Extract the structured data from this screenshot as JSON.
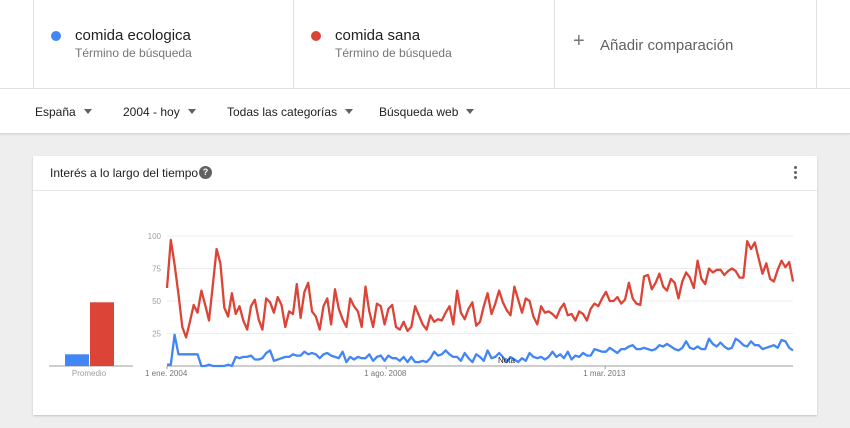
{
  "terms": [
    {
      "name": "comida ecologica",
      "subtitle": "Término de búsqueda",
      "color": "#4285f4"
    },
    {
      "name": "comida sana",
      "subtitle": "Término de búsqueda",
      "color": "#db4437"
    }
  ],
  "add_comparison": {
    "icon": "plus-icon",
    "label": "Añadir comparación"
  },
  "filters": {
    "region": "España",
    "period": "2004 - hoy",
    "category": "Todas las categorías",
    "search_type": "Búsqueda web"
  },
  "card": {
    "title": "Interés a lo largo del tiempo",
    "help_icon": "help-icon",
    "menu_icon": "more-vert-icon"
  },
  "chart_data": {
    "type": "line",
    "title": "",
    "xlabel": "",
    "ylabel": "",
    "ylim": [
      0,
      100
    ],
    "y_ticks": [
      "25",
      "50",
      "75",
      "100"
    ],
    "x_ticks": [
      "1 ene. 2004",
      "1 ago. 2008",
      "1 mar. 2013"
    ],
    "note_label": "Nota",
    "grid": true,
    "average_label": "Promedio",
    "averages": [
      {
        "name": "comida ecologica",
        "value": 9
      },
      {
        "name": "comida sana",
        "value": 49
      }
    ],
    "series": [
      {
        "name": "comida sana",
        "color": "#db4437",
        "values": [
          60,
          97,
          78,
          55,
          30,
          22,
          34,
          47,
          41,
          58,
          47,
          35,
          62,
          90,
          79,
          45,
          38,
          56,
          40,
          46,
          35,
          28,
          46,
          51,
          36,
          28,
          52,
          49,
          41,
          53,
          47,
          30,
          42,
          40,
          63,
          37,
          57,
          64,
          42,
          38,
          28,
          46,
          52,
          32,
          59,
          44,
          36,
          30,
          52,
          46,
          42,
          30,
          61,
          42,
          30,
          48,
          46,
          32,
          44,
          47,
          30,
          28,
          34,
          27,
          30,
          46,
          39,
          32,
          28,
          39,
          34,
          36,
          35,
          41,
          46,
          32,
          58,
          41,
          36,
          44,
          49,
          31,
          34,
          46,
          56,
          40,
          48,
          58,
          49,
          43,
          39,
          61,
          51,
          41,
          52,
          50,
          38,
          32,
          46,
          41,
          42,
          40,
          37,
          44,
          48,
          39,
          40,
          35,
          42,
          40,
          35,
          44,
          48,
          46,
          52,
          57,
          50,
          50,
          53,
          48,
          51,
          64,
          52,
          48,
          47,
          69,
          70,
          59,
          64,
          71,
          61,
          58,
          67,
          64,
          52,
          65,
          72,
          68,
          60,
          81,
          67,
          63,
          75,
          72,
          74,
          74,
          70,
          73,
          75,
          73,
          68,
          68,
          96,
          90,
          95,
          83,
          71,
          79,
          67,
          65,
          74,
          81,
          76,
          80,
          65
        ]
      },
      {
        "name": "comida ecologica",
        "color": "#4285f4",
        "values": [
          1,
          1,
          24,
          9,
          9,
          9,
          9,
          9,
          9,
          0,
          0,
          1,
          0,
          0,
          0,
          0,
          1,
          0,
          7,
          6,
          7,
          7,
          8,
          5,
          5,
          6,
          10,
          12,
          4,
          5,
          6,
          7,
          7,
          9,
          8,
          8,
          11,
          9,
          10,
          9,
          6,
          9,
          10,
          8,
          7,
          6,
          11,
          3,
          7,
          5,
          7,
          6,
          6,
          9,
          4,
          7,
          8,
          4,
          8,
          6,
          6,
          4,
          7,
          3,
          7,
          3,
          3,
          4,
          3,
          6,
          11,
          8,
          9,
          12,
          9,
          7,
          7,
          4,
          10,
          6,
          3,
          9,
          7,
          4,
          12,
          6,
          7,
          10,
          7,
          3,
          7,
          5,
          3,
          6,
          4,
          10,
          7,
          6,
          7,
          5,
          7,
          11,
          7,
          9,
          6,
          11,
          5,
          8,
          7,
          10,
          8,
          8,
          13,
          12,
          11,
          11,
          14,
          12,
          10,
          13,
          13,
          15,
          16,
          13,
          13,
          14,
          13,
          12,
          13,
          16,
          15,
          17,
          15,
          13,
          12,
          14,
          19,
          14,
          13,
          15,
          13,
          13,
          21,
          17,
          15,
          18,
          15,
          13,
          14,
          21,
          19,
          16,
          15,
          19,
          16,
          16,
          13,
          14,
          15,
          16,
          14,
          20,
          19,
          14,
          12
        ]
      }
    ]
  }
}
